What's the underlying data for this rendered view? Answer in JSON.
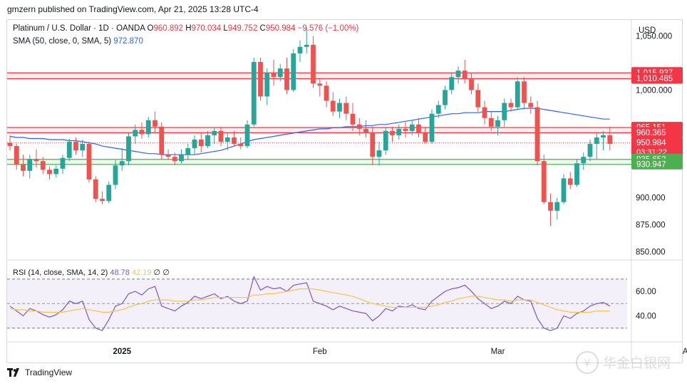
{
  "header": {
    "published": "gmzern published on TradingView.com, Apr 21, 2025 13:28 UTC-4"
  },
  "legend": {
    "symbol": "Platinum / U.S. Dollar · 1D · OANDA",
    "o_label": "O",
    "o_value": "960.892",
    "h_label": "H",
    "h_value": "970.034",
    "l_label": "L",
    "l_value": "949.752",
    "c_label": "C",
    "c_value": "950.984",
    "change": "−9.576 (−1.00%)",
    "sma_label": "SMA (50, close, 0, SMA, 5)",
    "sma_value": "972.870",
    "rsi_label": "RSI (14, close, SMA, 14, 2)",
    "rsi_value": "48.78",
    "rsi_sma_value": "42.19",
    "rsi_extra1": "∅",
    "rsi_extra2": "∅"
  },
  "axis": {
    "currency": "USD"
  },
  "footer": {
    "brand": "TradingView"
  },
  "watermark": {
    "text": "华金白银网"
  },
  "colors": {
    "up": "#26a69a",
    "down": "#ef5350",
    "sma": "#2962ff",
    "rsi": "#7e57c2",
    "rsi_sma": "#f7c548"
  },
  "chart_data": [
    {
      "type": "candlestick",
      "title": "Platinum / U.S. Dollar · 1D · OANDA",
      "ylim": [
        843,
        1065
      ],
      "y_ticks": [
        850,
        875,
        900,
        1000,
        1050
      ],
      "y_tick_labels": [
        "850.000",
        "875.000",
        "900.000",
        "1,000.000",
        "1,050.000"
      ],
      "x_ticks": [
        {
          "index": 17,
          "label": "2025"
        },
        {
          "index": 47,
          "label": "Feb"
        },
        {
          "index": 74,
          "label": "Mar"
        },
        {
          "index": 103,
          "label": "Apr"
        }
      ],
      "price_labels": [
        {
          "value": 1015.937,
          "text": "1,015.937",
          "color": "#f23645"
        },
        {
          "value": 1010.485,
          "text": "1,010.485",
          "color": "#f23645"
        },
        {
          "value": 965.151,
          "text": "965.151",
          "color": "#f23645"
        },
        {
          "value": 960.365,
          "text": "960.365",
          "color": "#f23645"
        },
        {
          "value": 950.984,
          "text": "950.984",
          "color": "#f23645",
          "sub": "03:31:22"
        },
        {
          "value": 935.652,
          "text": "935.652",
          "color": "#4caf50"
        },
        {
          "value": 930.947,
          "text": "930.947",
          "color": "#4caf50"
        }
      ],
      "zones": [
        {
          "from": 1010.485,
          "to": 1015.937,
          "color": "red"
        },
        {
          "from": 960.365,
          "to": 965.151,
          "color": "red"
        },
        {
          "from": 930.947,
          "to": 935.652,
          "color": "green"
        }
      ],
      "last_price": 950.984,
      "ohlc": [
        [
          951,
          958,
          944,
          948
        ],
        [
          948,
          950,
          926,
          931
        ],
        [
          931,
          940,
          920,
          925
        ],
        [
          925,
          940,
          918,
          936
        ],
        [
          936,
          945,
          928,
          934
        ],
        [
          934,
          938,
          922,
          926
        ],
        [
          926,
          929,
          917,
          922
        ],
        [
          922,
          930,
          919,
          927
        ],
        [
          927,
          940,
          922,
          937
        ],
        [
          937,
          955,
          934,
          952
        ],
        [
          952,
          956,
          940,
          944
        ],
        [
          944,
          954,
          938,
          950
        ],
        [
          950,
          952,
          914,
          917
        ],
        [
          917,
          920,
          896,
          899
        ],
        [
          899,
          906,
          894,
          897
        ],
        [
          897,
          915,
          895,
          912
        ],
        [
          912,
          935,
          908,
          930
        ],
        [
          930,
          946,
          925,
          934
        ],
        [
          934,
          960,
          930,
          957
        ],
        [
          957,
          968,
          950,
          963
        ],
        [
          963,
          970,
          955,
          959
        ],
        [
          959,
          975,
          956,
          972
        ],
        [
          972,
          980,
          960,
          966
        ],
        [
          966,
          970,
          936,
          940
        ],
        [
          940,
          945,
          935,
          938
        ],
        [
          938,
          942,
          930,
          934
        ],
        [
          934,
          945,
          932,
          940
        ],
        [
          940,
          950,
          935,
          946
        ],
        [
          946,
          958,
          940,
          954
        ],
        [
          954,
          960,
          942,
          948
        ],
        [
          948,
          962,
          946,
          958
        ],
        [
          958,
          965,
          950,
          962
        ],
        [
          962,
          966,
          948,
          952
        ],
        [
          952,
          960,
          944,
          956
        ],
        [
          956,
          962,
          948,
          950
        ],
        [
          950,
          956,
          945,
          948
        ],
        [
          948,
          972,
          946,
          968
        ],
        [
          968,
          1030,
          966,
          1026
        ],
        [
          1026,
          1030,
          990,
          994
        ],
        [
          994,
          1020,
          986,
          1016
        ],
        [
          1016,
          1028,
          1004,
          1012
        ],
        [
          1012,
          1024,
          1008,
          1020
        ],
        [
          1020,
          1030,
          996,
          1000
        ],
        [
          1000,
          1038,
          998,
          1034
        ],
        [
          1034,
          1046,
          1026,
          1040
        ],
        [
          1040,
          1058,
          1034,
          1042
        ],
        [
          1042,
          1050,
          1002,
          1006
        ],
        [
          1006,
          1010,
          994,
          1004
        ],
        [
          1004,
          1008,
          984,
          990
        ],
        [
          990,
          998,
          976,
          980
        ],
        [
          980,
          992,
          974,
          988
        ],
        [
          988,
          994,
          972,
          978
        ],
        [
          978,
          988,
          962,
          968
        ],
        [
          968,
          974,
          958,
          964
        ],
        [
          964,
          972,
          956,
          960
        ],
        [
          960,
          966,
          930,
          938
        ],
        [
          938,
          952,
          930,
          944
        ],
        [
          944,
          966,
          940,
          962
        ],
        [
          962,
          966,
          952,
          958
        ],
        [
          958,
          968,
          954,
          964
        ],
        [
          964,
          970,
          956,
          962
        ],
        [
          962,
          972,
          958,
          968
        ],
        [
          968,
          974,
          956,
          960
        ],
        [
          960,
          966,
          950,
          952
        ],
        [
          952,
          982,
          950,
          978
        ],
        [
          978,
          990,
          974,
          986
        ],
        [
          986,
          1004,
          982,
          1000
        ],
        [
          1000,
          1016,
          996,
          1012
        ],
        [
          1012,
          1022,
          1006,
          1018
        ],
        [
          1018,
          1028,
          1006,
          1010
        ],
        [
          1010,
          1016,
          996,
          1000
        ],
        [
          1000,
          1006,
          980,
          984
        ],
        [
          984,
          990,
          968,
          974
        ],
        [
          974,
          980,
          962,
          966
        ],
        [
          966,
          976,
          958,
          972
        ],
        [
          972,
          992,
          966,
          988
        ],
        [
          988,
          992,
          980,
          984
        ],
        [
          984,
          1012,
          982,
          1008
        ],
        [
          1008,
          1012,
          982,
          988
        ],
        [
          988,
          994,
          978,
          984
        ],
        [
          984,
          990,
          930,
          934
        ],
        [
          934,
          940,
          894,
          896
        ],
        [
          896,
          904,
          874,
          888
        ],
        [
          888,
          900,
          880,
          896
        ],
        [
          896,
          922,
          894,
          918
        ],
        [
          918,
          924,
          908,
          912
        ],
        [
          912,
          936,
          910,
          932
        ],
        [
          932,
          942,
          926,
          938
        ],
        [
          938,
          954,
          934,
          950
        ],
        [
          950,
          960,
          936,
          956
        ],
        [
          956,
          962,
          944,
          958
        ],
        [
          958,
          966,
          944,
          950
        ]
      ]
    },
    {
      "type": "line",
      "title": "SMA (50, close, 0, SMA, 5)",
      "values": [
        957,
        956,
        956,
        955,
        955,
        955,
        954,
        954,
        954,
        953,
        953,
        952,
        951,
        950,
        948,
        947,
        946,
        945,
        944,
        943,
        942,
        941,
        941,
        940,
        940,
        940,
        940,
        940,
        940,
        941,
        942,
        943,
        944,
        946,
        948,
        950,
        952,
        954,
        955,
        956,
        957,
        958,
        959,
        960,
        961,
        962,
        963,
        964,
        964,
        965,
        965,
        966,
        966,
        966,
        967,
        967,
        968,
        968,
        969,
        970,
        971,
        972,
        973,
        974,
        975,
        976,
        977,
        978,
        978,
        979,
        979,
        979,
        980,
        980,
        980,
        980,
        981,
        982,
        983,
        983,
        983,
        982,
        981,
        980,
        979,
        978,
        977,
        976,
        975,
        974,
        973,
        973
      ]
    },
    {
      "type": "line",
      "title": "RSI (14, close, SMA, 14, 2)",
      "ylim": [
        20,
        85
      ],
      "y_ticks": [
        40,
        60
      ],
      "y_tick_labels": [
        "40.00",
        "60.00"
      ],
      "bands": [
        30,
        50,
        70
      ],
      "series": [
        {
          "name": "RSI",
          "values": [
            48,
            44,
            40,
            46,
            44,
            41,
            39,
            41,
            45,
            52,
            50,
            52,
            37,
            30,
            28,
            37,
            48,
            50,
            58,
            60,
            57,
            62,
            64,
            48,
            46,
            44,
            48,
            51,
            56,
            54,
            56,
            58,
            54,
            56,
            52,
            50,
            52,
            72,
            61,
            64,
            62,
            63,
            60,
            65,
            66,
            67,
            52,
            50,
            48,
            45,
            48,
            46,
            44,
            43,
            42,
            36,
            40,
            46,
            44,
            48,
            47,
            49,
            46,
            45,
            52,
            56,
            60,
            62,
            63,
            65,
            60,
            54,
            50,
            46,
            48,
            52,
            50,
            56,
            53,
            52,
            38,
            30,
            28,
            30,
            40,
            38,
            42,
            44,
            48,
            50,
            51,
            48
          ]
        },
        {
          "name": "RSI SMA",
          "values": [
            46,
            45,
            45,
            44,
            44,
            43,
            43,
            43,
            43,
            44,
            45,
            46,
            45,
            44,
            43,
            43,
            44,
            45,
            47,
            49,
            50,
            52,
            53,
            53,
            53,
            52,
            52,
            52,
            53,
            53,
            54,
            55,
            55,
            55,
            55,
            55,
            55,
            57,
            57,
            58,
            58,
            59,
            60,
            61,
            62,
            62,
            62,
            61,
            60,
            59,
            58,
            57,
            56,
            54,
            52,
            50,
            49,
            48,
            47,
            47,
            47,
            47,
            47,
            47,
            48,
            49,
            51,
            52,
            54,
            55,
            56,
            56,
            55,
            54,
            53,
            53,
            52,
            53,
            53,
            53,
            51,
            49,
            47,
            45,
            44,
            43,
            43,
            43,
            43,
            44,
            44,
            44
          ]
        }
      ]
    }
  ]
}
